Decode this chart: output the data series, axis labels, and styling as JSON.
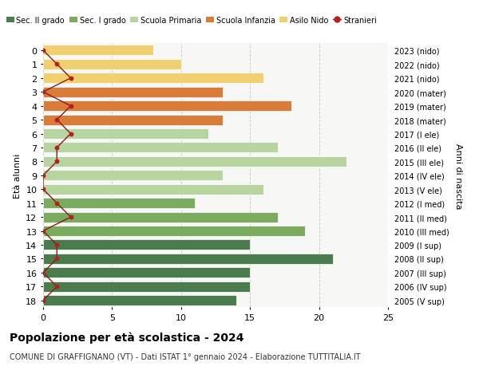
{
  "ages": [
    0,
    1,
    2,
    3,
    4,
    5,
    6,
    7,
    8,
    9,
    10,
    11,
    12,
    13,
    14,
    15,
    16,
    17,
    18
  ],
  "right_labels": [
    "2023 (nido)",
    "2022 (nido)",
    "2021 (nido)",
    "2020 (mater)",
    "2019 (mater)",
    "2018 (mater)",
    "2017 (I ele)",
    "2016 (II ele)",
    "2015 (III ele)",
    "2014 (IV ele)",
    "2013 (V ele)",
    "2012 (I med)",
    "2011 (II med)",
    "2010 (III med)",
    "2009 (I sup)",
    "2008 (II sup)",
    "2007 (III sup)",
    "2006 (IV sup)",
    "2005 (V sup)"
  ],
  "bar_values": [
    8,
    10,
    16,
    13,
    18,
    13,
    12,
    17,
    22,
    13,
    16,
    11,
    17,
    19,
    15,
    21,
    15,
    15,
    14
  ],
  "bar_colors": [
    "#f0d070",
    "#f0d070",
    "#f0d070",
    "#d97c3a",
    "#d97c3a",
    "#d97c3a",
    "#b8d4a0",
    "#b8d4a0",
    "#b8d4a0",
    "#b8d4a0",
    "#b8d4a0",
    "#7aab5e",
    "#7aab5e",
    "#7aab5e",
    "#4a7c4e",
    "#4a7c4e",
    "#4a7c4e",
    "#4a7c4e",
    "#4a7c4e"
  ],
  "stranieri_values": [
    0,
    1,
    2,
    0,
    2,
    1,
    2,
    1,
    1,
    0,
    0,
    1,
    2,
    0,
    1,
    1,
    0,
    1,
    0
  ],
  "title": "Popolazione per età scolastica - 2024",
  "subtitle": "COMUNE DI GRAFFIGNANO (VT) - Dati ISTAT 1° gennaio 2024 - Elaborazione TUTTITALIA.IT",
  "ylabel": "Età alunni",
  "right_ylabel": "Anni di nascita",
  "xlim": [
    0,
    25
  ],
  "xticks": [
    0,
    5,
    10,
    15,
    20,
    25
  ],
  "legend_labels": [
    "Sec. II grado",
    "Sec. I grado",
    "Scuola Primaria",
    "Scuola Infanzia",
    "Asilo Nido",
    "Stranieri"
  ],
  "legend_colors": [
    "#4a7c4e",
    "#7aab5e",
    "#b8d4a0",
    "#d97c3a",
    "#f0d070",
    "#b22222"
  ],
  "bg_color": "#ffffff",
  "grid_color": "#cccccc",
  "bar_height": 0.75
}
